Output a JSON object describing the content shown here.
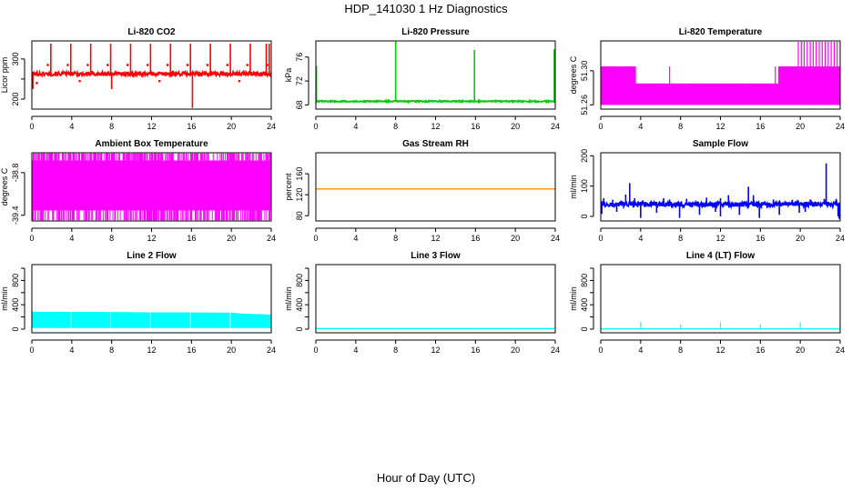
{
  "figure": {
    "title": "HDP_141030  1 Hz Diagnostics",
    "xlabel": "Hour of Day (UTC)"
  },
  "colors": {
    "red": "#ff0000",
    "green": "#00cc00",
    "magenta": "#ff00ff",
    "orange": "#ff8c00",
    "blue": "#0000ff",
    "cyan": "#00ffff"
  },
  "chart_data": [
    {
      "type": "line",
      "title": "Li-820 CO2",
      "ylabel": "Licor ppm",
      "xlim": [
        0,
        24
      ],
      "ylim": [
        175,
        345
      ],
      "x_ticks": [
        0,
        4,
        8,
        12,
        16,
        20,
        24
      ],
      "y_ticks": [
        200,
        250,
        300
      ],
      "y_tick_labels": [
        "200",
        "",
        "300"
      ],
      "series": [
        {
          "color": "red",
          "baseline": {
            "center": 263,
            "spread": 5
          },
          "spikes": [
            [
              0.1,
              225
            ],
            [
              1.9,
              338
            ],
            [
              3.9,
              338
            ],
            [
              5.9,
              338
            ],
            [
              7.9,
              338
            ],
            [
              8.0,
              225
            ],
            [
              9.9,
              338
            ],
            [
              11.9,
              338
            ],
            [
              13.9,
              338
            ],
            [
              15.9,
              338
            ],
            [
              16.1,
              178
            ],
            [
              17.9,
              338
            ],
            [
              19.9,
              338
            ],
            [
              21.9,
              338
            ],
            [
              23.5,
              338
            ],
            [
              23.8,
              338
            ]
          ],
          "markers": [
            [
              1.6,
              285
            ],
            [
              3.6,
              285
            ],
            [
              5.6,
              285
            ],
            [
              7.6,
              285
            ],
            [
              9.6,
              285
            ],
            [
              11.6,
              285
            ],
            [
              13.6,
              285
            ],
            [
              15.6,
              285
            ],
            [
              17.6,
              285
            ],
            [
              19.6,
              285
            ],
            [
              21.6,
              285
            ],
            [
              23.6,
              285
            ],
            [
              0.5,
              240
            ],
            [
              4.8,
              245
            ],
            [
              12.8,
              245
            ],
            [
              20.8,
              245
            ]
          ]
        }
      ]
    },
    {
      "type": "line",
      "title": "Li-820 Pressure",
      "ylabel": "kPa",
      "xlim": [
        0,
        24
      ],
      "ylim": [
        67.3,
        78.7
      ],
      "x_ticks": [
        0,
        4,
        8,
        12,
        16,
        20,
        24
      ],
      "y_ticks": [
        68,
        72,
        76
      ],
      "y_tick_labels": [
        "68",
        "72",
        "76"
      ],
      "series": [
        {
          "color": "green",
          "baseline": {
            "center": 68.6,
            "spread": 0.1
          },
          "spikes": [
            [
              0.05,
              74.5
            ],
            [
              8.0,
              78.6
            ],
            [
              15.9,
              77.2
            ],
            [
              23.9,
              77.3
            ]
          ],
          "markers": [
            [
              2.0,
              68.6
            ],
            [
              6.0,
              68.6
            ],
            [
              10.0,
              68.6
            ],
            [
              14.0,
              68.6
            ],
            [
              18.0,
              68.6
            ],
            [
              22.0,
              68.6
            ]
          ]
        }
      ]
    },
    {
      "type": "area",
      "title": "Li-820 Temperature",
      "ylabel": "degrees C",
      "xlim": [
        0,
        24
      ],
      "ylim": [
        51.255,
        51.335
      ],
      "x_ticks": [
        0,
        4,
        8,
        12,
        16,
        20,
        24
      ],
      "y_ticks": [
        51.26,
        51.3
      ],
      "y_tick_labels": [
        "51.26",
        "51.30"
      ],
      "series": [
        {
          "color": "magenta",
          "bottom": 51.26,
          "tops": [
            [
              0,
              51.305
            ],
            [
              3.5,
              51.305
            ],
            [
              3.5,
              51.285
            ],
            [
              17.8,
              51.285
            ],
            [
              17.8,
              51.305
            ],
            [
              24,
              51.305
            ]
          ],
          "spikes": [
            [
              6.9,
              51.305
            ],
            [
              17.5,
              51.305
            ],
            [
              18.1,
              51.305
            ],
            [
              19.8,
              51.334
            ],
            [
              20.1,
              51.334
            ],
            [
              20.4,
              51.334
            ],
            [
              20.7,
              51.334
            ],
            [
              21.0,
              51.334
            ],
            [
              21.3,
              51.334
            ],
            [
              21.6,
              51.334
            ],
            [
              21.9,
              51.334
            ],
            [
              22.2,
              51.334
            ],
            [
              22.5,
              51.334
            ],
            [
              22.8,
              51.334
            ],
            [
              23.1,
              51.334
            ],
            [
              23.4,
              51.334
            ],
            [
              23.7,
              51.334
            ]
          ]
        }
      ]
    },
    {
      "type": "area",
      "title": "Ambient Box Temperature",
      "ylabel": "degrees C",
      "xlim": [
        0,
        24
      ],
      "ylim": [
        -39.48,
        -38.52
      ],
      "x_ticks": [
        0,
        4,
        8,
        12,
        16,
        20,
        24
      ],
      "y_ticks": [
        -39.4,
        -38.8
      ],
      "y_tick_labels": [
        "-39.4",
        "-38.8"
      ],
      "series": [
        {
          "color": "magenta",
          "band": [
            -39.33,
            -38.63
          ],
          "extremes": [
            -39.47,
            -38.53
          ]
        }
      ]
    },
    {
      "type": "line",
      "title": "Gas Stream RH",
      "ylabel": "percent",
      "xlim": [
        0,
        24
      ],
      "ylim": [
        70,
        200
      ],
      "x_ticks": [
        0,
        4,
        8,
        12,
        16,
        20,
        24
      ],
      "y_ticks": [
        80,
        120,
        160
      ],
      "y_tick_labels": [
        "80",
        "120",
        "160"
      ],
      "series": [
        {
          "color": "orange",
          "constant": 131
        }
      ]
    },
    {
      "type": "line",
      "title": "Sample Flow",
      "ylabel": "ml/min",
      "xlim": [
        0,
        24
      ],
      "ylim": [
        -15,
        210
      ],
      "x_ticks": [
        0,
        4,
        8,
        12,
        16,
        20,
        24
      ],
      "y_ticks": [
        0,
        100,
        200
      ],
      "y_tick_labels": [
        "0",
        "100",
        "200"
      ],
      "series": [
        {
          "color": "blue",
          "baseline": {
            "center": 40,
            "spread": 8
          },
          "spikes": [
            [
              0.3,
              60
            ],
            [
              1.2,
              55
            ],
            [
              2.5,
              72
            ],
            [
              2.9,
              110
            ],
            [
              3.4,
              60
            ],
            [
              6.3,
              60
            ],
            [
              6.9,
              56
            ],
            [
              8.6,
              58
            ],
            [
              10.6,
              62
            ],
            [
              12.0,
              60
            ],
            [
              12.8,
              70
            ],
            [
              14.8,
              98
            ],
            [
              15.3,
              70
            ],
            [
              17.3,
              56
            ],
            [
              19.2,
              55
            ],
            [
              21.0,
              56
            ],
            [
              22.4,
              58
            ],
            [
              22.6,
              175
            ],
            [
              23.6,
              58
            ]
          ],
          "dips": [
            [
              0.1,
              8
            ],
            [
              1.6,
              15
            ],
            [
              4.0,
              -5
            ],
            [
              5.6,
              12
            ],
            [
              7.9,
              -5
            ],
            [
              9.9,
              5
            ],
            [
              11.5,
              15
            ],
            [
              12.0,
              0
            ],
            [
              13.9,
              5
            ],
            [
              15.9,
              -5
            ],
            [
              17.9,
              5
            ],
            [
              19.9,
              12
            ],
            [
              20.5,
              15
            ],
            [
              23.8,
              0
            ],
            [
              23.9,
              -8
            ]
          ]
        }
      ]
    },
    {
      "type": "area",
      "title": "Line 2 Flow",
      "ylabel": "ml/min",
      "xlim": [
        0,
        24
      ],
      "ylim": [
        -60,
        1060
      ],
      "x_ticks": [
        0,
        4,
        8,
        12,
        16,
        20,
        24
      ],
      "y_ticks": [
        0,
        200,
        400,
        600,
        800,
        1000
      ],
      "y_tick_labels": [
        "0",
        "",
        "400",
        "",
        "800",
        ""
      ],
      "series": [
        {
          "color": "cyan",
          "bottom": 20,
          "tops": [
            [
              0,
              285
            ],
            [
              20,
              270
            ],
            [
              21,
              255
            ],
            [
              23.5,
              240
            ],
            [
              24,
              235
            ]
          ],
          "gaps": [
            3.9,
            7.9,
            11.9,
            15.9,
            19.9
          ]
        }
      ]
    },
    {
      "type": "line",
      "title": "Line 3 Flow",
      "ylabel": "ml/min",
      "xlim": [
        0,
        24
      ],
      "ylim": [
        -60,
        1060
      ],
      "x_ticks": [
        0,
        4,
        8,
        12,
        16,
        20,
        24
      ],
      "y_ticks": [
        0,
        200,
        400,
        600,
        800,
        1000
      ],
      "y_tick_labels": [
        "0",
        "",
        "400",
        "",
        "800",
        ""
      ],
      "series": [
        {
          "color": "cyan",
          "constant": 10
        }
      ]
    },
    {
      "type": "line",
      "title": "Line 4 (LT) Flow",
      "ylabel": "ml/min",
      "xlim": [
        0,
        24
      ],
      "ylim": [
        -60,
        1060
      ],
      "x_ticks": [
        0,
        4,
        8,
        12,
        16,
        20,
        24
      ],
      "y_ticks": [
        0,
        200,
        400,
        600,
        800,
        1000
      ],
      "y_tick_labels": [
        "0",
        "",
        "400",
        "",
        "800",
        ""
      ],
      "series": [
        {
          "color": "cyan",
          "constant": 5,
          "spikes": [
            [
              4.0,
              120
            ],
            [
              8.0,
              75
            ],
            [
              12.0,
              115
            ],
            [
              16.0,
              75
            ],
            [
              20.0,
              110
            ],
            [
              24.0,
              75
            ]
          ]
        }
      ]
    }
  ]
}
